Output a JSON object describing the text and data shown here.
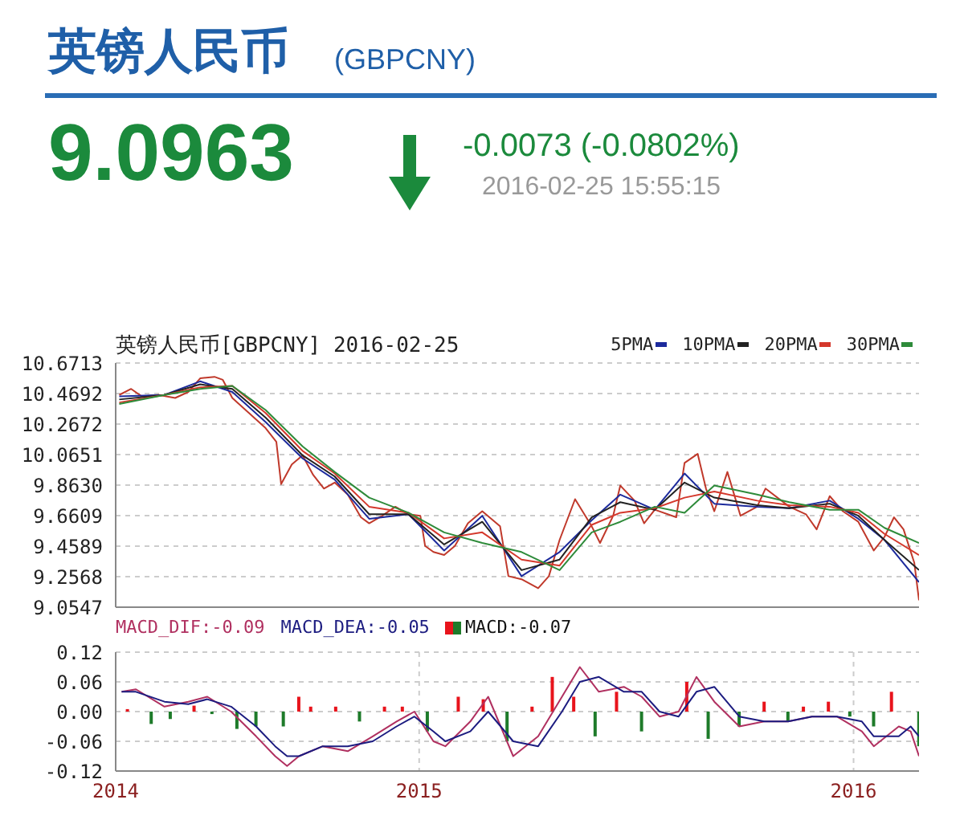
{
  "chart_data": [
    {
      "type": "other",
      "title": "英镑人民币",
      "subtitle": "(GBPCNY)",
      "annotations": [
        "9.0963",
        "-0.0073 (-0.0802%)",
        "2016-02-25 15:55:15"
      ]
    },
    {
      "type": "line",
      "title": "英镑人民币[GBPCNY] 2016-02-25",
      "legend": "top right",
      "grid": true,
      "marker": "none",
      "tick_labels": "y",
      "xlim": [
        "2014-04-21",
        "2016-02-25"
      ],
      "xticks": [
        {
          "value": "2014-04-21",
          "label": null
        },
        {
          "value": "2015-01-01",
          "label": null
        },
        {
          "value": "2016-01-01",
          "label": null
        }
      ],
      "ylim": [
        9.0547,
        10.6713
      ],
      "yticks": [
        9.0547,
        9.2568,
        9.4589,
        {
          "value": 9.6609,
          "label": "9.6609"
        },
        {
          "value": 9.863,
          "label": "9.8630"
        },
        10.0651,
        10.2672,
        10.4692,
        10.6713
      ],
      "series": [
        {
          "color": "#c0392b",
          "x": [
            "2014-04-24",
            "2014-05-04",
            "2014-05-13",
            "2014-05-27",
            "2014-06-10",
            "2014-06-21",
            "2014-07-01",
            "2014-07-13",
            "2014-07-20",
            "2014-07-28",
            "2014-08-11",
            "2014-08-25",
            "2014-09-03",
            "2014-09-07",
            "2014-09-16",
            "2014-09-25",
            "2014-10-04",
            "2014-10-13",
            "2014-10-22",
            "2014-11-02",
            "2014-11-13",
            "2014-11-20",
            "2014-12-01",
            "2014-12-12",
            "2014-12-23",
            "2015-01-02",
            "2015-01-06",
            "2015-01-13",
            "2015-01-22",
            "2015-01-31",
            "2015-02-11",
            "2015-02-23",
            "2015-03-10",
            "2015-03-17",
            "2015-03-28",
            "2015-04-11",
            "2015-04-20",
            "2015-04-29",
            "2015-05-12",
            "2015-05-26",
            "2015-06-02",
            "2015-06-13",
            "2015-06-19",
            "2015-07-01",
            "2015-07-09",
            "2015-07-18",
            "2015-08-05",
            "2015-08-12",
            "2015-08-23",
            "2015-08-30",
            "2015-09-06",
            "2015-09-17",
            "2015-09-28",
            "2015-10-12",
            "2015-10-19",
            "2015-11-08",
            "2015-11-22",
            "2015-12-01",
            "2015-12-12",
            "2015-12-23",
            "2016-01-05",
            "2016-01-18",
            "2016-01-27",
            "2016-02-04",
            "2016-02-12",
            "2016-02-21",
            "2016-02-25"
          ],
          "values": [
            10.46,
            10.5,
            10.45,
            10.46,
            10.44,
            10.48,
            10.57,
            10.58,
            10.56,
            10.44,
            10.34,
            10.24,
            10.15,
            9.87,
            10.0,
            10.06,
            9.93,
            9.84,
            9.88,
            9.8,
            9.65,
            9.61,
            9.66,
            9.72,
            9.67,
            9.66,
            9.46,
            9.42,
            9.4,
            9.46,
            9.61,
            9.69,
            9.59,
            9.26,
            9.24,
            9.18,
            9.26,
            9.5,
            9.77,
            9.59,
            9.48,
            9.66,
            9.86,
            9.76,
            9.61,
            9.7,
            9.65,
            10.01,
            10.07,
            9.84,
            9.69,
            9.95,
            9.66,
            9.72,
            9.84,
            9.72,
            9.67,
            9.57,
            9.79,
            9.69,
            9.62,
            9.43,
            9.52,
            9.65,
            9.57,
            9.35,
            9.1
          ]
        },
        {
          "name": "5PMA",
          "color": "#1c2a9c",
          "x": [
            "2014-04-24",
            "2014-06-01",
            "2014-07-01",
            "2014-07-28",
            "2014-08-25",
            "2014-09-25",
            "2014-10-22",
            "2014-11-20",
            "2014-12-23",
            "2015-01-22",
            "2015-02-23",
            "2015-03-28",
            "2015-04-29",
            "2015-05-26",
            "2015-06-19",
            "2015-07-18",
            "2015-08-12",
            "2015-09-06",
            "2015-10-12",
            "2015-11-08",
            "2015-12-12",
            "2016-01-05",
            "2016-01-27",
            "2016-02-25"
          ],
          "values": [
            10.45,
            10.46,
            10.55,
            10.48,
            10.28,
            10.04,
            9.9,
            9.64,
            9.67,
            9.43,
            9.66,
            9.26,
            9.42,
            9.63,
            9.8,
            9.7,
            9.94,
            9.74,
            9.72,
            9.71,
            9.76,
            9.64,
            9.5,
            9.22
          ]
        },
        {
          "name": "10PMA",
          "color": "#222222",
          "x": [
            "2014-04-24",
            "2014-06-01",
            "2014-07-01",
            "2014-07-28",
            "2014-08-25",
            "2014-09-25",
            "2014-10-22",
            "2014-11-20",
            "2014-12-23",
            "2015-01-22",
            "2015-02-23",
            "2015-03-28",
            "2015-04-29",
            "2015-05-26",
            "2015-06-19",
            "2015-07-18",
            "2015-08-12",
            "2015-09-06",
            "2015-10-12",
            "2015-11-08",
            "2015-12-12",
            "2016-01-05",
            "2016-01-27",
            "2016-02-25"
          ],
          "values": [
            10.43,
            10.46,
            10.53,
            10.5,
            10.31,
            10.06,
            9.92,
            9.67,
            9.67,
            9.47,
            9.62,
            9.3,
            9.37,
            9.65,
            9.75,
            9.7,
            9.88,
            9.78,
            9.73,
            9.71,
            9.74,
            9.66,
            9.5,
            9.3
          ]
        },
        {
          "name": "20PMA",
          "color": "#d4382c",
          "x": [
            "2014-04-24",
            "2014-06-01",
            "2014-07-01",
            "2014-07-28",
            "2014-08-25",
            "2014-09-25",
            "2014-10-22",
            "2014-11-20",
            "2014-12-23",
            "2015-01-22",
            "2015-02-23",
            "2015-03-28",
            "2015-04-29",
            "2015-05-26",
            "2015-06-19",
            "2015-07-18",
            "2015-08-12",
            "2015-09-06",
            "2015-10-12",
            "2015-11-08",
            "2015-12-12",
            "2016-01-05",
            "2016-01-27",
            "2016-02-25"
          ],
          "values": [
            10.41,
            10.46,
            10.51,
            10.52,
            10.34,
            10.09,
            9.94,
            9.72,
            9.68,
            9.51,
            9.55,
            9.37,
            9.33,
            9.6,
            9.68,
            9.71,
            9.78,
            9.82,
            9.76,
            9.73,
            9.72,
            9.68,
            9.54,
            9.4
          ]
        },
        {
          "name": "30PMA",
          "color": "#2e8b3a",
          "x": [
            "2014-04-24",
            "2014-06-01",
            "2014-07-01",
            "2014-07-28",
            "2014-08-25",
            "2014-09-25",
            "2014-10-22",
            "2014-11-20",
            "2014-12-23",
            "2015-01-22",
            "2015-02-23",
            "2015-03-28",
            "2015-04-29",
            "2015-05-26",
            "2015-06-19",
            "2015-07-18",
            "2015-08-12",
            "2015-09-06",
            "2015-10-12",
            "2015-11-08",
            "2015-12-12",
            "2016-01-05",
            "2016-01-27",
            "2016-02-25"
          ],
          "values": [
            10.4,
            10.46,
            10.5,
            10.52,
            10.36,
            10.12,
            9.95,
            9.78,
            9.68,
            9.55,
            9.48,
            9.42,
            9.3,
            9.55,
            9.62,
            9.72,
            9.68,
            9.86,
            9.8,
            9.75,
            9.7,
            9.7,
            9.58,
            9.48
          ]
        }
      ]
    },
    {
      "type": "bar",
      "legend": "top left",
      "grid": true,
      "marker": "none",
      "xlim": [
        "2014-04-21",
        "2016-02-25"
      ],
      "xticks": [
        {
          "value": "2014-04-21",
          "label": "2014"
        },
        {
          "value": "2015-01-01",
          "label": "2015"
        },
        {
          "value": "2016-01-01",
          "label": "2016"
        }
      ],
      "ylim": [
        -0.12,
        0.12
      ],
      "yticks": [
        -0.12,
        -0.06,
        {
          "value": 0,
          "label": "0.00"
        },
        0.06,
        0.12
      ],
      "series": [
        {
          "name": "MACD:-0.07",
          "x": [
            "2014-05-01",
            "2014-05-21",
            "2014-06-06",
            "2014-06-26",
            "2014-07-11",
            "2014-08-01",
            "2014-08-17",
            "2014-09-09",
            "2014-09-22",
            "2014-10-02",
            "2014-10-23",
            "2014-11-12",
            "2014-12-03",
            "2014-12-18",
            "2015-01-08",
            "2015-02-03",
            "2015-02-24",
            "2015-03-16",
            "2015-04-06",
            "2015-04-23",
            "2015-05-11",
            "2015-05-29",
            "2015-06-16",
            "2015-07-07",
            "2015-07-22",
            "2015-08-14",
            "2015-09-01",
            "2015-09-27",
            "2015-10-18",
            "2015-11-07",
            "2015-11-20",
            "2015-12-11",
            "2015-12-29",
            "2016-01-18",
            "2016-02-02",
            "2016-02-25"
          ],
          "values": [
            0.005,
            -0.025,
            -0.015,
            0.012,
            -0.005,
            -0.035,
            -0.03,
            -0.03,
            0.03,
            0.01,
            0.01,
            -0.02,
            0.01,
            0.01,
            -0.04,
            0.03,
            0.025,
            -0.06,
            0.01,
            0.07,
            0.03,
            -0.05,
            0.04,
            -0.04,
            null,
            0.06,
            -0.055,
            -0.03,
            0.02,
            -0.02,
            0.01,
            0.02,
            -0.01,
            -0.03,
            0.04,
            -0.07
          ],
          "colors": [
            "#e8141c",
            "#1e7b2a",
            "#1e7b2a",
            "#e8141c",
            "#1e7b2a",
            "#1e7b2a",
            "#1e7b2a",
            "#1e7b2a",
            "#e8141c",
            "#e8141c",
            "#e8141c",
            "#1e7b2a",
            "#e8141c",
            "#e8141c",
            "#1e7b2a",
            "#e8141c",
            "#e8141c",
            "#1e7b2a",
            "#e8141c",
            "#e8141c",
            "#e8141c",
            "#1e7b2a",
            "#e8141c",
            "#1e7b2a",
            "#e8141c",
            "#e8141c",
            "#1e7b2a",
            "#1e7b2a",
            "#e8141c",
            "#1e7b2a",
            "#e8141c",
            "#e8141c",
            "#1e7b2a",
            "#1e7b2a",
            "#e8141c",
            "#1e7b2a"
          ]
        },
        {
          "name": "MACD_DIF:-0.09",
          "type": "line",
          "color": "#b03060",
          "x": [
            "2014-04-26",
            "2014-05-08",
            "2014-06-01",
            "2014-06-21",
            "2014-07-07",
            "2014-07-27",
            "2014-08-17",
            "2014-09-02",
            "2014-09-12",
            "2014-09-22",
            "2014-10-12",
            "2014-11-02",
            "2014-11-23",
            "2014-12-13",
            "2014-12-28",
            "2015-01-13",
            "2015-01-23",
            "2015-02-13",
            "2015-02-28",
            "2015-03-21",
            "2015-04-11",
            "2015-05-01",
            "2015-05-16",
            "2015-06-01",
            "2015-06-22",
            "2015-07-07",
            "2015-07-22",
            "2015-08-07",
            "2015-08-22",
            "2015-09-06",
            "2015-09-27",
            "2015-10-18",
            "2015-11-07",
            "2015-11-27",
            "2015-12-18",
            "2016-01-08",
            "2016-01-18",
            "2016-02-08",
            "2016-02-18",
            "2016-02-25"
          ],
          "values": [
            0.04,
            0.045,
            0.01,
            0.02,
            0.03,
            0.0,
            -0.05,
            -0.09,
            -0.11,
            -0.09,
            -0.07,
            -0.08,
            -0.05,
            -0.02,
            0.0,
            -0.06,
            -0.07,
            -0.02,
            0.03,
            -0.09,
            -0.05,
            0.03,
            0.09,
            0.04,
            0.05,
            0.03,
            -0.01,
            0.0,
            0.07,
            0.02,
            -0.03,
            -0.02,
            -0.02,
            -0.01,
            -0.01,
            -0.04,
            -0.07,
            -0.03,
            -0.04,
            -0.09
          ]
        },
        {
          "name": "MACD_DEA:-0.05",
          "type": "line",
          "color": "#1c1c80",
          "x": [
            "2014-04-26",
            "2014-05-08",
            "2014-06-01",
            "2014-06-21",
            "2014-07-07",
            "2014-07-27",
            "2014-08-17",
            "2014-09-02",
            "2014-09-12",
            "2014-09-22",
            "2014-10-12",
            "2014-11-02",
            "2014-11-23",
            "2014-12-13",
            "2014-12-28",
            "2015-01-13",
            "2015-01-23",
            "2015-02-13",
            "2015-02-28",
            "2015-03-21",
            "2015-04-11",
            "2015-05-01",
            "2015-05-16",
            "2015-06-01",
            "2015-06-22",
            "2015-07-07",
            "2015-07-22",
            "2015-08-07",
            "2015-08-22",
            "2015-09-06",
            "2015-09-27",
            "2015-10-18",
            "2015-11-07",
            "2015-11-27",
            "2015-12-18",
            "2016-01-08",
            "2016-01-18",
            "2016-02-08",
            "2016-02-18",
            "2016-02-25"
          ],
          "values": [
            0.04,
            0.04,
            0.02,
            0.015,
            0.025,
            0.01,
            -0.03,
            -0.07,
            -0.09,
            -0.09,
            -0.07,
            -0.07,
            -0.06,
            -0.03,
            -0.01,
            -0.04,
            -0.06,
            -0.04,
            0.0,
            -0.06,
            -0.07,
            0.0,
            0.06,
            0.07,
            0.04,
            0.04,
            0.0,
            -0.01,
            0.04,
            0.05,
            -0.01,
            -0.02,
            -0.02,
            -0.01,
            -0.01,
            -0.02,
            -0.05,
            -0.05,
            -0.03,
            -0.05
          ]
        }
      ]
    }
  ]
}
